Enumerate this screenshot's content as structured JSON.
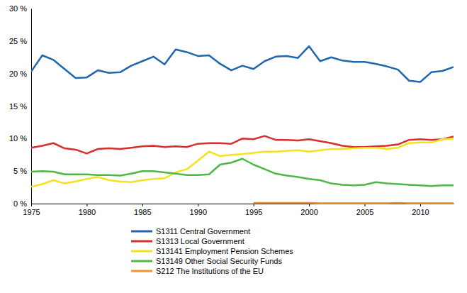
{
  "chart_data": {
    "type": "line",
    "x": [
      1975,
      1976,
      1977,
      1978,
      1979,
      1980,
      1981,
      1982,
      1983,
      1984,
      1985,
      1986,
      1987,
      1988,
      1989,
      1990,
      1991,
      1992,
      1993,
      1994,
      1995,
      1996,
      1997,
      1998,
      1999,
      2000,
      2001,
      2002,
      2003,
      2004,
      2005,
      2006,
      2007,
      2008,
      2009,
      2010,
      2011,
      2012,
      2013
    ],
    "xlim": [
      1975,
      2013
    ],
    "xticks": [
      1975,
      1980,
      1985,
      1990,
      1995,
      2000,
      2005,
      2010
    ],
    "ylim": [
      0,
      30
    ],
    "yticks": [
      {
        "value": 0,
        "label": "0 %"
      },
      {
        "value": 5,
        "label": "5 %"
      },
      {
        "value": 10,
        "label": "10 %"
      },
      {
        "value": 15,
        "label": "15 %"
      },
      {
        "value": 20,
        "label": "20 %"
      },
      {
        "value": 25,
        "label": "25 %"
      },
      {
        "value": 30,
        "label": "30 %"
      }
    ],
    "grid": false,
    "legend": "bottom",
    "series": [
      {
        "name": "S1311 Central Government",
        "color": "#1f66b0",
        "values": [
          20.3,
          22.8,
          22.1,
          20.7,
          19.3,
          19.4,
          20.5,
          20.1,
          20.2,
          21.2,
          21.9,
          22.6,
          21.4,
          23.7,
          23.3,
          22.7,
          22.8,
          21.5,
          20.5,
          21.2,
          20.7,
          21.9,
          22.6,
          22.7,
          22.4,
          24.2,
          21.9,
          22.5,
          22.0,
          21.8,
          21.8,
          21.5,
          21.1,
          20.6,
          18.9,
          18.7,
          20.2,
          20.4,
          21.0
        ]
      },
      {
        "name": "S1313 Local Government",
        "color": "#d7302a",
        "values": [
          8.6,
          8.9,
          9.3,
          8.5,
          8.3,
          7.7,
          8.4,
          8.5,
          8.4,
          8.6,
          8.8,
          8.9,
          8.7,
          8.8,
          8.7,
          9.2,
          9.3,
          9.3,
          9.2,
          10.0,
          9.9,
          10.4,
          9.8,
          9.8,
          9.7,
          9.9,
          9.6,
          9.3,
          8.9,
          8.7,
          8.7,
          8.8,
          8.9,
          9.1,
          9.8,
          9.9,
          9.8,
          9.9,
          10.3
        ]
      },
      {
        "name": "S13141 Employment Pension Schemes",
        "color": "#f2e31e",
        "values": [
          2.6,
          3.0,
          3.6,
          3.1,
          3.4,
          3.8,
          4.1,
          3.6,
          3.4,
          3.3,
          3.6,
          3.8,
          3.9,
          4.8,
          5.3,
          6.6,
          8.0,
          7.3,
          7.5,
          7.6,
          7.8,
          8.0,
          8.0,
          8.1,
          8.2,
          8.0,
          8.2,
          8.4,
          8.4,
          8.5,
          8.6,
          8.6,
          8.4,
          8.6,
          9.3,
          9.4,
          9.4,
          9.9,
          10.0
        ]
      },
      {
        "name": "S13149 Other Social Security Funds",
        "color": "#4cb848",
        "values": [
          4.9,
          5.0,
          4.9,
          4.5,
          4.5,
          4.5,
          4.4,
          4.4,
          4.3,
          4.6,
          5.0,
          5.0,
          4.8,
          4.6,
          4.4,
          4.4,
          4.5,
          6.0,
          6.3,
          6.9,
          6.0,
          5.3,
          4.6,
          4.3,
          4.1,
          3.8,
          3.6,
          3.1,
          2.9,
          2.8,
          2.9,
          3.3,
          3.1,
          3.0,
          2.9,
          2.8,
          2.7,
          2.8,
          2.8
        ]
      },
      {
        "name": "S212 The Institutions of the EU",
        "color": "#f0962b",
        "values": [
          null,
          null,
          null,
          null,
          null,
          null,
          null,
          null,
          null,
          null,
          null,
          null,
          null,
          null,
          null,
          null,
          null,
          null,
          null,
          null,
          0.1,
          0.1,
          0.1,
          0.1,
          0.1,
          0.1,
          0.05,
          0.05,
          0.05,
          0.05,
          0.05,
          0.05,
          0.05,
          0.1,
          0.05,
          0.05,
          0.05,
          0.05,
          0.05
        ]
      }
    ]
  }
}
